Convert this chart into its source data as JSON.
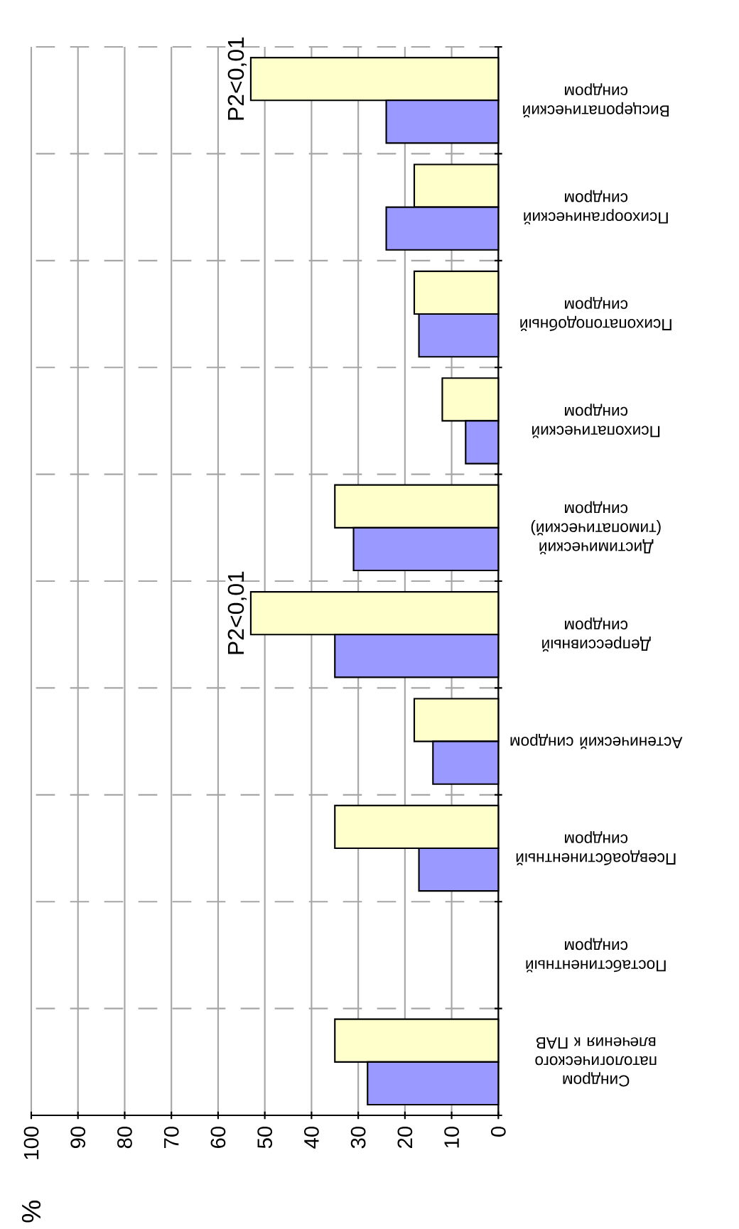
{
  "chart_data": {
    "type": "bar",
    "orientation": "horizontal",
    "categories": [
      "Висцеропатический синдром",
      "Психоорганический синдром",
      "Психопатоподобный синдром",
      "Психопатический синдром",
      "Дистимический (тимопатический) синдром",
      "Депрессивный синдром",
      "Астенический синдром",
      "Псевдоабстинентный синдром",
      "Постабстинентный синдром",
      "Синдром патологического влечения к ПАВ"
    ],
    "series": [
      {
        "color": "#ffffcc",
        "values": [
          53,
          18,
          18,
          12,
          35,
          53,
          18,
          35,
          null,
          35
        ]
      },
      {
        "color": "#9999ff",
        "values": [
          24,
          24,
          17,
          7,
          31,
          35,
          14,
          17,
          null,
          28
        ]
      }
    ],
    "xlim": [
      100,
      0
    ],
    "xticks": [
      100,
      90,
      80,
      70,
      60,
      50,
      40,
      30,
      20,
      10,
      0
    ],
    "grid": true,
    "annotations": [
      "%",
      {
        "text": "P2<0,01",
        "x": 53,
        "y": "Висцеропатический синдром"
      },
      {
        "text": "P2<0,01",
        "x": 53,
        "y": "Депрессивный синдром"
      }
    ]
  }
}
